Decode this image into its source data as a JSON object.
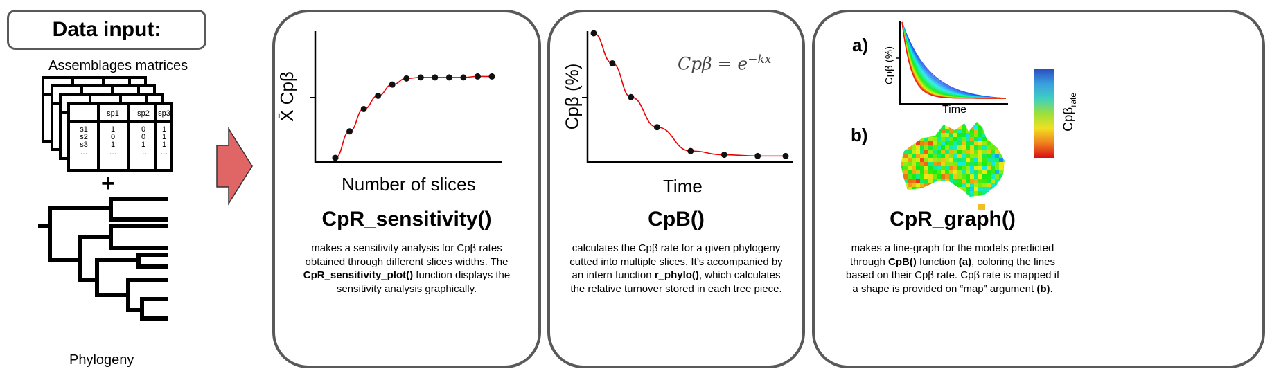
{
  "data_input": {
    "title": "Data input:",
    "matrices_label": "Assemblages matrices",
    "plus": "+",
    "phylogeny_label": "Phylogeny",
    "matrix": {
      "headers": [
        "sp1",
        "sp2",
        "sp3"
      ],
      "rows": [
        [
          "s1",
          "1",
          "0",
          "1"
        ],
        [
          "s2",
          "0",
          "0",
          "1"
        ],
        [
          "s3",
          "1",
          "1",
          "1"
        ],
        [
          "…",
          "…",
          "…",
          "…"
        ]
      ]
    }
  },
  "arrow_color": "#e06666",
  "panels": [
    {
      "title": "CpR_sensitivity()",
      "xlabel": "Number of slices",
      "ylabel": "X̄ Cpβ",
      "desc": [
        [
          {
            "t": "makes a sensitivity analysis for Cpβ rates"
          }
        ],
        [
          {
            "t": "obtained through different slices widths. The"
          }
        ],
        [
          {
            "t": "CpR_sensitivity_plot()",
            "b": true
          },
          {
            "t": " function displays the"
          }
        ],
        [
          {
            "t": "sensitivity analysis graphically."
          }
        ]
      ],
      "chart_data": {
        "type": "line",
        "x": [
          1,
          2,
          3,
          4,
          5,
          6,
          7,
          8,
          9,
          10,
          11,
          12
        ],
        "y": [
          0.0,
          0.26,
          0.48,
          0.61,
          0.72,
          0.78,
          0.79,
          0.79,
          0.79,
          0.79,
          0.8,
          0.8
        ],
        "xlabel": "Number of slices",
        "ylabel": "X̄ Cpβ"
      }
    },
    {
      "title": "CpB()",
      "xlabel": "Time",
      "ylabel": "Cpβ (%)",
      "formula": "Cpβ = e^(−kx)",
      "desc": [
        [
          {
            "t": "calculates the Cpβ rate for a given phylogeny"
          }
        ],
        [
          {
            "t": "cutted into multiple slices. It’s accompanied by"
          }
        ],
        [
          {
            "t": "an intern function "
          },
          {
            "t": "r_phylo()",
            "b": true
          },
          {
            "t": ", which calculates"
          }
        ],
        [
          {
            "t": "the relative turnover stored in each tree piece."
          }
        ]
      ],
      "chart_data": {
        "type": "line",
        "x": [
          0,
          1,
          2,
          3.4,
          5.2,
          7,
          8.8,
          10.3
        ],
        "y": [
          1.0,
          0.76,
          0.49,
          0.25,
          0.06,
          0.03,
          0.02,
          0.02
        ],
        "xlabel": "Time",
        "ylabel": "Cpβ (%)"
      }
    },
    {
      "title": "CpR_graph()",
      "label_a": "a)",
      "label_b": "b)",
      "xlabel": "Time",
      "ylabel": "Cpβ (%)",
      "colorbar_label": "Cpβ",
      "colorbar_sub": "rate",
      "desc": [
        [
          {
            "t": "makes a line-graph for the models predicted"
          }
        ],
        [
          {
            "t": "through "
          },
          {
            "t": "CpB()",
            "b": true
          },
          {
            "t": " function "
          },
          {
            "t": "(a)",
            "b": true
          },
          {
            "t": ", coloring the lines"
          }
        ],
        [
          {
            "t": "based on their Cpβ rate. Cpβ rate is mapped if"
          }
        ],
        [
          {
            "t": "a shape is provided on “map” argument "
          },
          {
            "t": "(b)",
            "b": true
          },
          {
            "t": "."
          }
        ]
      ]
    }
  ]
}
